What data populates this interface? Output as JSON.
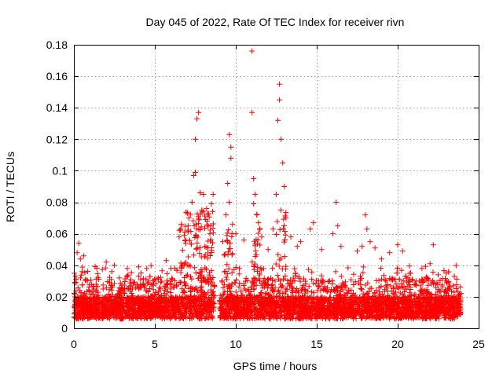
{
  "chart_data": {
    "type": "scatter",
    "title": "Day 045 of 2022, Rate Of TEC Index for receiver rivn",
    "xlabel": "GPS time / hours",
    "ylabel": "ROTI / TECUs",
    "xlim": [
      0,
      25
    ],
    "ylim": [
      0,
      0.18
    ],
    "xticks": [
      0,
      5,
      10,
      15,
      20,
      25
    ],
    "yticks": [
      0,
      0.02,
      0.04,
      0.06,
      0.08,
      0.1,
      0.12,
      0.14,
      0.16,
      0.18
    ],
    "xtick_labels": [
      "0",
      "5",
      "10",
      "15",
      "20",
      "25"
    ],
    "ytick_labels": [
      "0",
      "0.02",
      "0.04",
      "0.06",
      "0.08",
      "0.1",
      "0.12",
      "0.14",
      "0.16",
      "0.18"
    ],
    "grid": true,
    "marker": "+",
    "color": "#ff0000",
    "series": [
      {
        "name": "ROTI",
        "points": [
          [
            0.1,
            0.033
          ],
          [
            0.2,
            0.048
          ],
          [
            0.3,
            0.054
          ],
          [
            0.4,
            0.044
          ],
          [
            0.5,
            0.036
          ],
          [
            0.6,
            0.046
          ],
          [
            2.0,
            0.042
          ],
          [
            2.5,
            0.04
          ],
          [
            3.3,
            0.038
          ],
          [
            4.0,
            0.039
          ],
          [
            4.5,
            0.038
          ],
          [
            5.7,
            0.043
          ],
          [
            6.0,
            0.038
          ],
          [
            6.5,
            0.058
          ],
          [
            6.6,
            0.063
          ],
          [
            6.9,
            0.056
          ],
          [
            7.1,
            0.07
          ],
          [
            7.3,
            0.08
          ],
          [
            7.4,
            0.097
          ],
          [
            7.5,
            0.12
          ],
          [
            7.6,
            0.133
          ],
          [
            7.7,
            0.137
          ],
          [
            7.5,
            0.099
          ],
          [
            7.8,
            0.086
          ],
          [
            7.9,
            0.075
          ],
          [
            8.0,
            0.085
          ],
          [
            8.2,
            0.076
          ],
          [
            8.4,
            0.06
          ],
          [
            8.5,
            0.079
          ],
          [
            8.6,
            0.085
          ],
          [
            9.2,
            0.055
          ],
          [
            9.4,
            0.072
          ],
          [
            9.5,
            0.092
          ],
          [
            9.6,
            0.123
          ],
          [
            9.7,
            0.115
          ],
          [
            9.7,
            0.108
          ],
          [
            9.6,
            0.08
          ],
          [
            9.8,
            0.066
          ],
          [
            10.0,
            0.06
          ],
          [
            10.5,
            0.056
          ],
          [
            11.0,
            0.176
          ],
          [
            11.0,
            0.137
          ],
          [
            11.1,
            0.095
          ],
          [
            11.2,
            0.085
          ],
          [
            11.1,
            0.079
          ],
          [
            11.3,
            0.072
          ],
          [
            11.4,
            0.067
          ],
          [
            11.6,
            0.058
          ],
          [
            12.0,
            0.05
          ],
          [
            12.3,
            0.063
          ],
          [
            12.5,
            0.085
          ],
          [
            12.6,
            0.132
          ],
          [
            12.7,
            0.155
          ],
          [
            12.7,
            0.145
          ],
          [
            12.8,
            0.12
          ],
          [
            12.9,
            0.105
          ],
          [
            13.0,
            0.09
          ],
          [
            13.1,
            0.07
          ],
          [
            13.4,
            0.058
          ],
          [
            13.8,
            0.052
          ],
          [
            14.0,
            0.055
          ],
          [
            14.6,
            0.063
          ],
          [
            14.8,
            0.067
          ],
          [
            15.3,
            0.05
          ],
          [
            16.0,
            0.06
          ],
          [
            16.2,
            0.08
          ],
          [
            16.3,
            0.065
          ],
          [
            16.5,
            0.052
          ],
          [
            17.5,
            0.049
          ],
          [
            17.8,
            0.052
          ],
          [
            18.0,
            0.072
          ],
          [
            18.1,
            0.063
          ],
          [
            18.3,
            0.055
          ],
          [
            18.6,
            0.051
          ],
          [
            19.0,
            0.044
          ],
          [
            19.5,
            0.048
          ],
          [
            20.0,
            0.053
          ],
          [
            20.3,
            0.049
          ],
          [
            20.8,
            0.035
          ],
          [
            21.5,
            0.038
          ],
          [
            22.0,
            0.041
          ],
          [
            22.2,
            0.053
          ],
          [
            22.5,
            0.034
          ],
          [
            23.0,
            0.035
          ],
          [
            23.5,
            0.033
          ]
        ]
      }
    ]
  }
}
